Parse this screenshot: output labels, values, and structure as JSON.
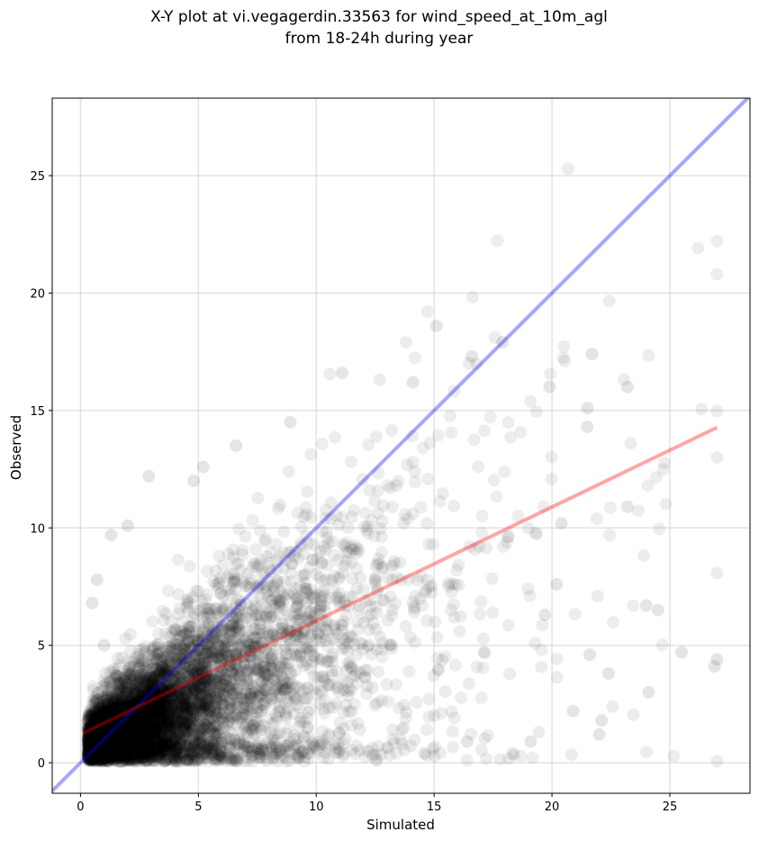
{
  "chart_data": {
    "type": "scatter",
    "title_lines": [
      "X-Y plot at vi.vegagerdin.33563 for wind_speed_at_10m_agl",
      "from 18-24h during year"
    ],
    "xlabel": "Simulated",
    "ylabel": "Observed",
    "xlim": [
      -1.2,
      28.4
    ],
    "ylim": [
      -1.3,
      28.3
    ],
    "xticks": [
      0,
      5,
      10,
      15,
      20,
      25
    ],
    "yticks": [
      0,
      5,
      10,
      15,
      20,
      25
    ],
    "grid": true,
    "point_color": "#000000",
    "point_alpha": 0.07,
    "identity_line": {
      "color": "#0000ff",
      "alpha": 0.35
    },
    "fit_line": {
      "color": "#ff0000",
      "alpha": 0.35,
      "slope": 0.484,
      "intercept": 1.21,
      "x": [
        0.1,
        27.0
      ]
    },
    "n_points": 6500,
    "points_sample": [
      [
        15.1,
        18.6
      ],
      [
        17.9,
        17.9
      ],
      [
        21.7,
        17.4
      ],
      [
        11.1,
        16.6
      ],
      [
        14.1,
        16.2
      ],
      [
        16.6,
        17.3
      ],
      [
        19.9,
        16.0
      ],
      [
        23.2,
        16.0
      ],
      [
        21.5,
        15.1
      ],
      [
        21.5,
        14.3
      ],
      [
        23.2,
        10.9
      ],
      [
        24.0,
        6.7
      ],
      [
        24.5,
        6.5
      ],
      [
        25.5,
        4.7
      ],
      [
        27.0,
        4.4
      ],
      [
        26.9,
        4.1
      ],
      [
        24.1,
        3.0
      ],
      [
        22.4,
        3.8
      ],
      [
        21.6,
        4.6
      ],
      [
        22.0,
        1.2
      ],
      [
        22.1,
        1.8
      ],
      [
        20.9,
        2.2
      ],
      [
        19.7,
        6.3
      ],
      [
        20.2,
        7.6
      ],
      [
        20.4,
        10.2
      ],
      [
        19.1,
        0.9
      ],
      [
        16.4,
        0.9
      ],
      [
        14.6,
        0.4
      ],
      [
        12.2,
        0.5
      ],
      [
        7.9,
        0.1
      ],
      [
        0.5,
        6.8
      ],
      [
        0.7,
        7.8
      ],
      [
        1.3,
        9.7
      ],
      [
        2.9,
        12.2
      ],
      [
        4.8,
        12.0
      ],
      [
        6.6,
        13.5
      ],
      [
        8.9,
        14.5
      ],
      [
        5.2,
        12.6
      ],
      [
        2.0,
        10.1
      ],
      [
        1.0,
        5.0
      ]
    ]
  }
}
